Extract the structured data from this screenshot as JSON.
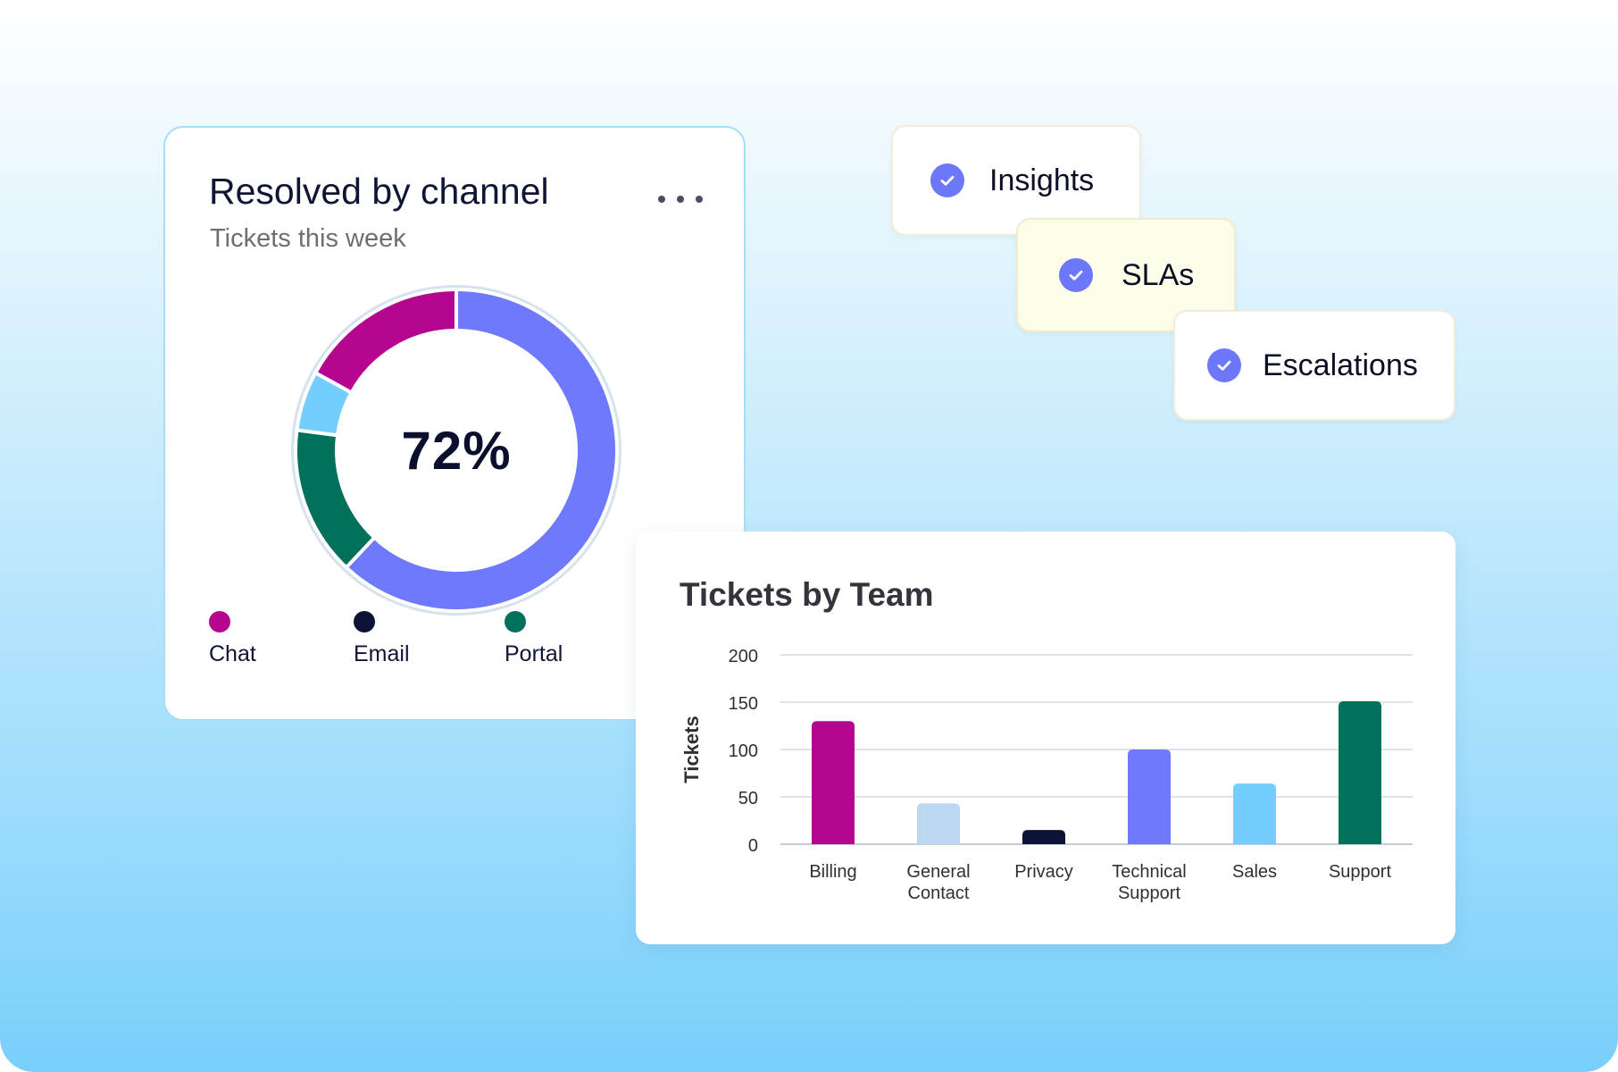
{
  "donut_card": {
    "title": "Resolved by channel",
    "subtitle": "Tickets this week",
    "center_value": "72%",
    "more_icon": "more-horizontal-icon",
    "legend": [
      {
        "label": "Chat",
        "color": "#b5068f"
      },
      {
        "label": "Email",
        "color": "#0c1136"
      },
      {
        "label": "Portal",
        "color": "#03705b"
      }
    ]
  },
  "tags": {
    "check_icon": "check-circle-icon",
    "accent": "#6d77fb",
    "items": [
      {
        "label": "Insights"
      },
      {
        "label": "SLAs"
      },
      {
        "label": "Escalations"
      }
    ]
  },
  "chart_data": [
    {
      "type": "pie",
      "variant": "donut",
      "title": "Resolved by channel",
      "subtitle": "Tickets this week",
      "center_label": "72%",
      "slices": [
        {
          "name": "",
          "value": 62,
          "color": "#6e79fd"
        },
        {
          "name": "",
          "value": 15,
          "color": "#03705b"
        },
        {
          "name": "",
          "value": 6,
          "color": "#73cdfd"
        },
        {
          "name": "",
          "value": 17,
          "color": "#b5068f"
        }
      ],
      "legend_labels": [
        "Chat",
        "Email",
        "Portal"
      ],
      "legend_placement": "bottom"
    },
    {
      "type": "bar",
      "title": "Tickets by Team",
      "xlabel": "",
      "ylabel": "Tickets",
      "categories": [
        [
          "Billing"
        ],
        [
          "General",
          "Contact"
        ],
        [
          "Privacy"
        ],
        [
          "Technical",
          "Support"
        ],
        [
          "Sales"
        ],
        [
          "Support"
        ]
      ],
      "values": [
        130,
        43,
        15,
        100,
        64,
        151
      ],
      "colors": [
        "#b5068f",
        "#bcd7f1",
        "#0c1136",
        "#6e79fd",
        "#73cdfd",
        "#03705b"
      ],
      "ylim": [
        0,
        200
      ],
      "yticks": [
        0,
        50,
        100,
        150,
        200
      ],
      "grid": true
    }
  ]
}
